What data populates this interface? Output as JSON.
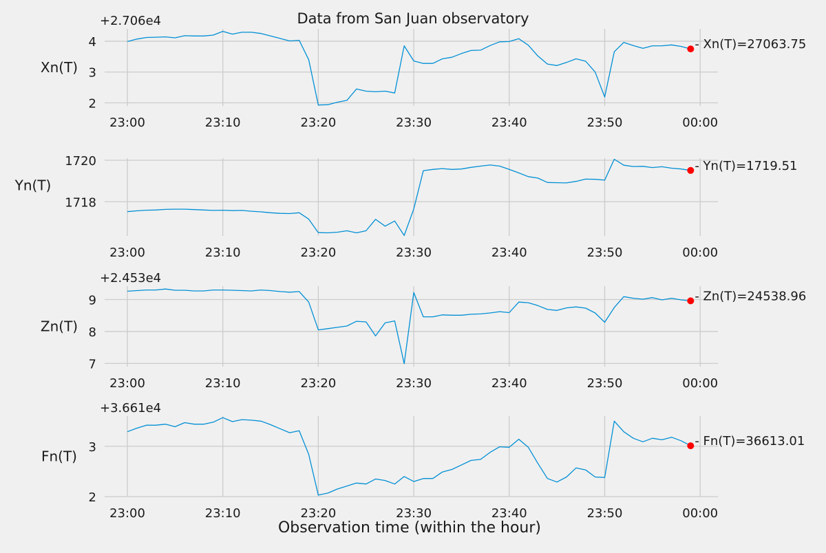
{
  "figure_title": "Data from  San Juan observatory",
  "xlabel": "Observation time (within the hour)",
  "chart_data": [
    {
      "type": "line",
      "ylabel": "Xn(T)",
      "offset_label": "+2.706e4",
      "ylim": [
        1.9,
        4.4
      ],
      "yticks": [
        2,
        3,
        4
      ],
      "xtick_labels": [
        "23:00",
        "23:10",
        "23:20",
        "23:30",
        "23:40",
        "23:50",
        "00:00"
      ],
      "x_minutes": [
        0,
        1,
        2,
        3,
        4,
        5,
        6,
        7,
        8,
        9,
        10,
        11,
        12,
        13,
        14,
        15,
        16,
        17,
        18,
        19,
        20,
        21,
        22,
        23,
        24,
        25,
        26,
        27,
        28,
        29,
        30,
        31,
        32,
        33,
        34,
        35,
        36,
        37,
        38,
        39,
        40,
        41,
        42,
        43,
        44,
        45,
        46,
        47,
        48,
        49,
        50,
        51,
        52,
        53,
        54,
        55,
        56,
        57,
        58,
        59
      ],
      "values": [
        3.99,
        4.07,
        4.12,
        4.13,
        4.14,
        4.11,
        4.18,
        4.17,
        4.17,
        4.2,
        4.32,
        4.23,
        4.29,
        4.29,
        4.25,
        4.17,
        4.09,
        4.01,
        4.03,
        3.4,
        1.93,
        1.94,
        2.02,
        2.08,
        2.45,
        2.38,
        2.36,
        2.38,
        2.32,
        3.85,
        3.36,
        3.28,
        3.28,
        3.43,
        3.48,
        3.6,
        3.7,
        3.71,
        3.86,
        3.98,
        3.99,
        4.08,
        3.87,
        3.52,
        3.26,
        3.21,
        3.31,
        3.43,
        3.35,
        3.0,
        2.19,
        3.66,
        3.96,
        3.86,
        3.77,
        3.85,
        3.85,
        3.88,
        3.83,
        3.75
      ],
      "endpoint_label": "- Xn(T)=27063.75",
      "line_color": "#008fd5",
      "marker_color": "#ff0000"
    },
    {
      "type": "line",
      "ylabel": "Yn(T)",
      "offset_label": "",
      "ylim": [
        1716.35,
        1720.1
      ],
      "yticks": [
        1718,
        1720
      ],
      "xtick_labels": [
        "23:00",
        "23:10",
        "23:20",
        "23:30",
        "23:40",
        "23:50",
        "00:00"
      ],
      "x_minutes": [
        0,
        1,
        2,
        3,
        4,
        5,
        6,
        7,
        8,
        9,
        10,
        11,
        12,
        13,
        14,
        15,
        16,
        17,
        18,
        19,
        20,
        21,
        22,
        23,
        24,
        25,
        26,
        27,
        28,
        29,
        30,
        31,
        32,
        33,
        34,
        35,
        36,
        37,
        38,
        39,
        40,
        41,
        42,
        43,
        44,
        45,
        46,
        47,
        48,
        49,
        50,
        51,
        52,
        53,
        54,
        55,
        56,
        57,
        58,
        59
      ],
      "values": [
        1717.52,
        1717.56,
        1717.59,
        1717.6,
        1717.63,
        1717.64,
        1717.64,
        1717.62,
        1717.6,
        1717.58,
        1717.59,
        1717.57,
        1717.58,
        1717.54,
        1717.51,
        1717.47,
        1717.44,
        1717.43,
        1717.47,
        1717.16,
        1716.51,
        1716.5,
        1716.53,
        1716.6,
        1716.5,
        1716.6,
        1717.15,
        1716.82,
        1717.07,
        1716.37,
        1717.65,
        1719.5,
        1719.56,
        1719.6,
        1719.56,
        1719.58,
        1719.66,
        1719.72,
        1719.77,
        1719.72,
        1719.56,
        1719.39,
        1719.21,
        1719.14,
        1718.93,
        1718.92,
        1718.91,
        1718.98,
        1719.09,
        1719.08,
        1719.04,
        1720.05,
        1719.76,
        1719.7,
        1719.71,
        1719.65,
        1719.69,
        1719.62,
        1719.58,
        1719.51
      ],
      "endpoint_label": "- Yn(T)=1719.51",
      "line_color": "#008fd5",
      "marker_color": "#ff0000"
    },
    {
      "type": "line",
      "ylabel": "Zn(T)",
      "offset_label": "+2.453e4",
      "ylim": [
        6.9,
        9.42
      ],
      "yticks": [
        7,
        8,
        9
      ],
      "xtick_labels": [
        "23:00",
        "23:10",
        "23:20",
        "23:30",
        "23:40",
        "23:50",
        "00:00"
      ],
      "x_minutes": [
        0,
        1,
        2,
        3,
        4,
        5,
        6,
        7,
        8,
        9,
        10,
        11,
        12,
        13,
        14,
        15,
        16,
        17,
        18,
        19,
        20,
        21,
        22,
        23,
        24,
        25,
        26,
        27,
        28,
        29,
        30,
        31,
        32,
        33,
        34,
        35,
        36,
        37,
        38,
        39,
        40,
        41,
        42,
        43,
        44,
        45,
        46,
        47,
        48,
        49,
        50,
        51,
        52,
        53,
        54,
        55,
        56,
        57,
        58,
        59
      ],
      "values": [
        9.26,
        9.28,
        9.3,
        9.3,
        9.33,
        9.29,
        9.29,
        9.27,
        9.27,
        9.3,
        9.3,
        9.29,
        9.28,
        9.27,
        9.3,
        9.28,
        9.25,
        9.23,
        9.25,
        8.92,
        8.05,
        8.09,
        8.13,
        8.17,
        8.32,
        8.3,
        7.86,
        8.27,
        8.33,
        6.99,
        9.22,
        8.46,
        8.46,
        8.52,
        8.51,
        8.51,
        8.54,
        8.55,
        8.58,
        8.62,
        8.59,
        8.92,
        8.9,
        8.81,
        8.69,
        8.66,
        8.74,
        8.77,
        8.73,
        8.58,
        8.29,
        8.75,
        9.09,
        9.04,
        9.01,
        9.06,
        8.99,
        9.04,
        8.99,
        8.96
      ],
      "endpoint_label": "- Zn(T)=24538.96",
      "line_color": "#008fd5",
      "marker_color": "#ff0000"
    },
    {
      "type": "line",
      "ylabel": "Fn(T)",
      "offset_label": "+3.661e4",
      "ylim": [
        2.0,
        3.6
      ],
      "yticks": [
        2,
        3
      ],
      "xtick_labels": [
        "23:00",
        "23:10",
        "23:20",
        "23:30",
        "23:40",
        "23:50",
        "00:00"
      ],
      "x_minutes": [
        0,
        1,
        2,
        3,
        4,
        5,
        6,
        7,
        8,
        9,
        10,
        11,
        12,
        13,
        14,
        15,
        16,
        17,
        18,
        19,
        20,
        21,
        22,
        23,
        24,
        25,
        26,
        27,
        28,
        29,
        30,
        31,
        32,
        33,
        34,
        35,
        36,
        37,
        38,
        39,
        40,
        41,
        42,
        43,
        44,
        45,
        46,
        47,
        48,
        49,
        50,
        51,
        52,
        53,
        54,
        55,
        56,
        57,
        58,
        59
      ],
      "values": [
        3.29,
        3.36,
        3.42,
        3.42,
        3.44,
        3.39,
        3.47,
        3.44,
        3.44,
        3.48,
        3.57,
        3.49,
        3.53,
        3.52,
        3.5,
        3.43,
        3.35,
        3.27,
        3.31,
        2.84,
        2.03,
        2.07,
        2.15,
        2.21,
        2.27,
        2.25,
        2.35,
        2.32,
        2.25,
        2.4,
        2.3,
        2.36,
        2.36,
        2.49,
        2.54,
        2.63,
        2.72,
        2.74,
        2.88,
        2.99,
        2.98,
        3.14,
        2.98,
        2.66,
        2.36,
        2.29,
        2.39,
        2.57,
        2.53,
        2.39,
        2.38,
        3.5,
        3.29,
        3.16,
        3.09,
        3.16,
        3.13,
        3.18,
        3.11,
        3.01
      ],
      "endpoint_label": "- Fn(T)=36613.01",
      "line_color": "#008fd5",
      "marker_color": "#ff0000"
    }
  ]
}
